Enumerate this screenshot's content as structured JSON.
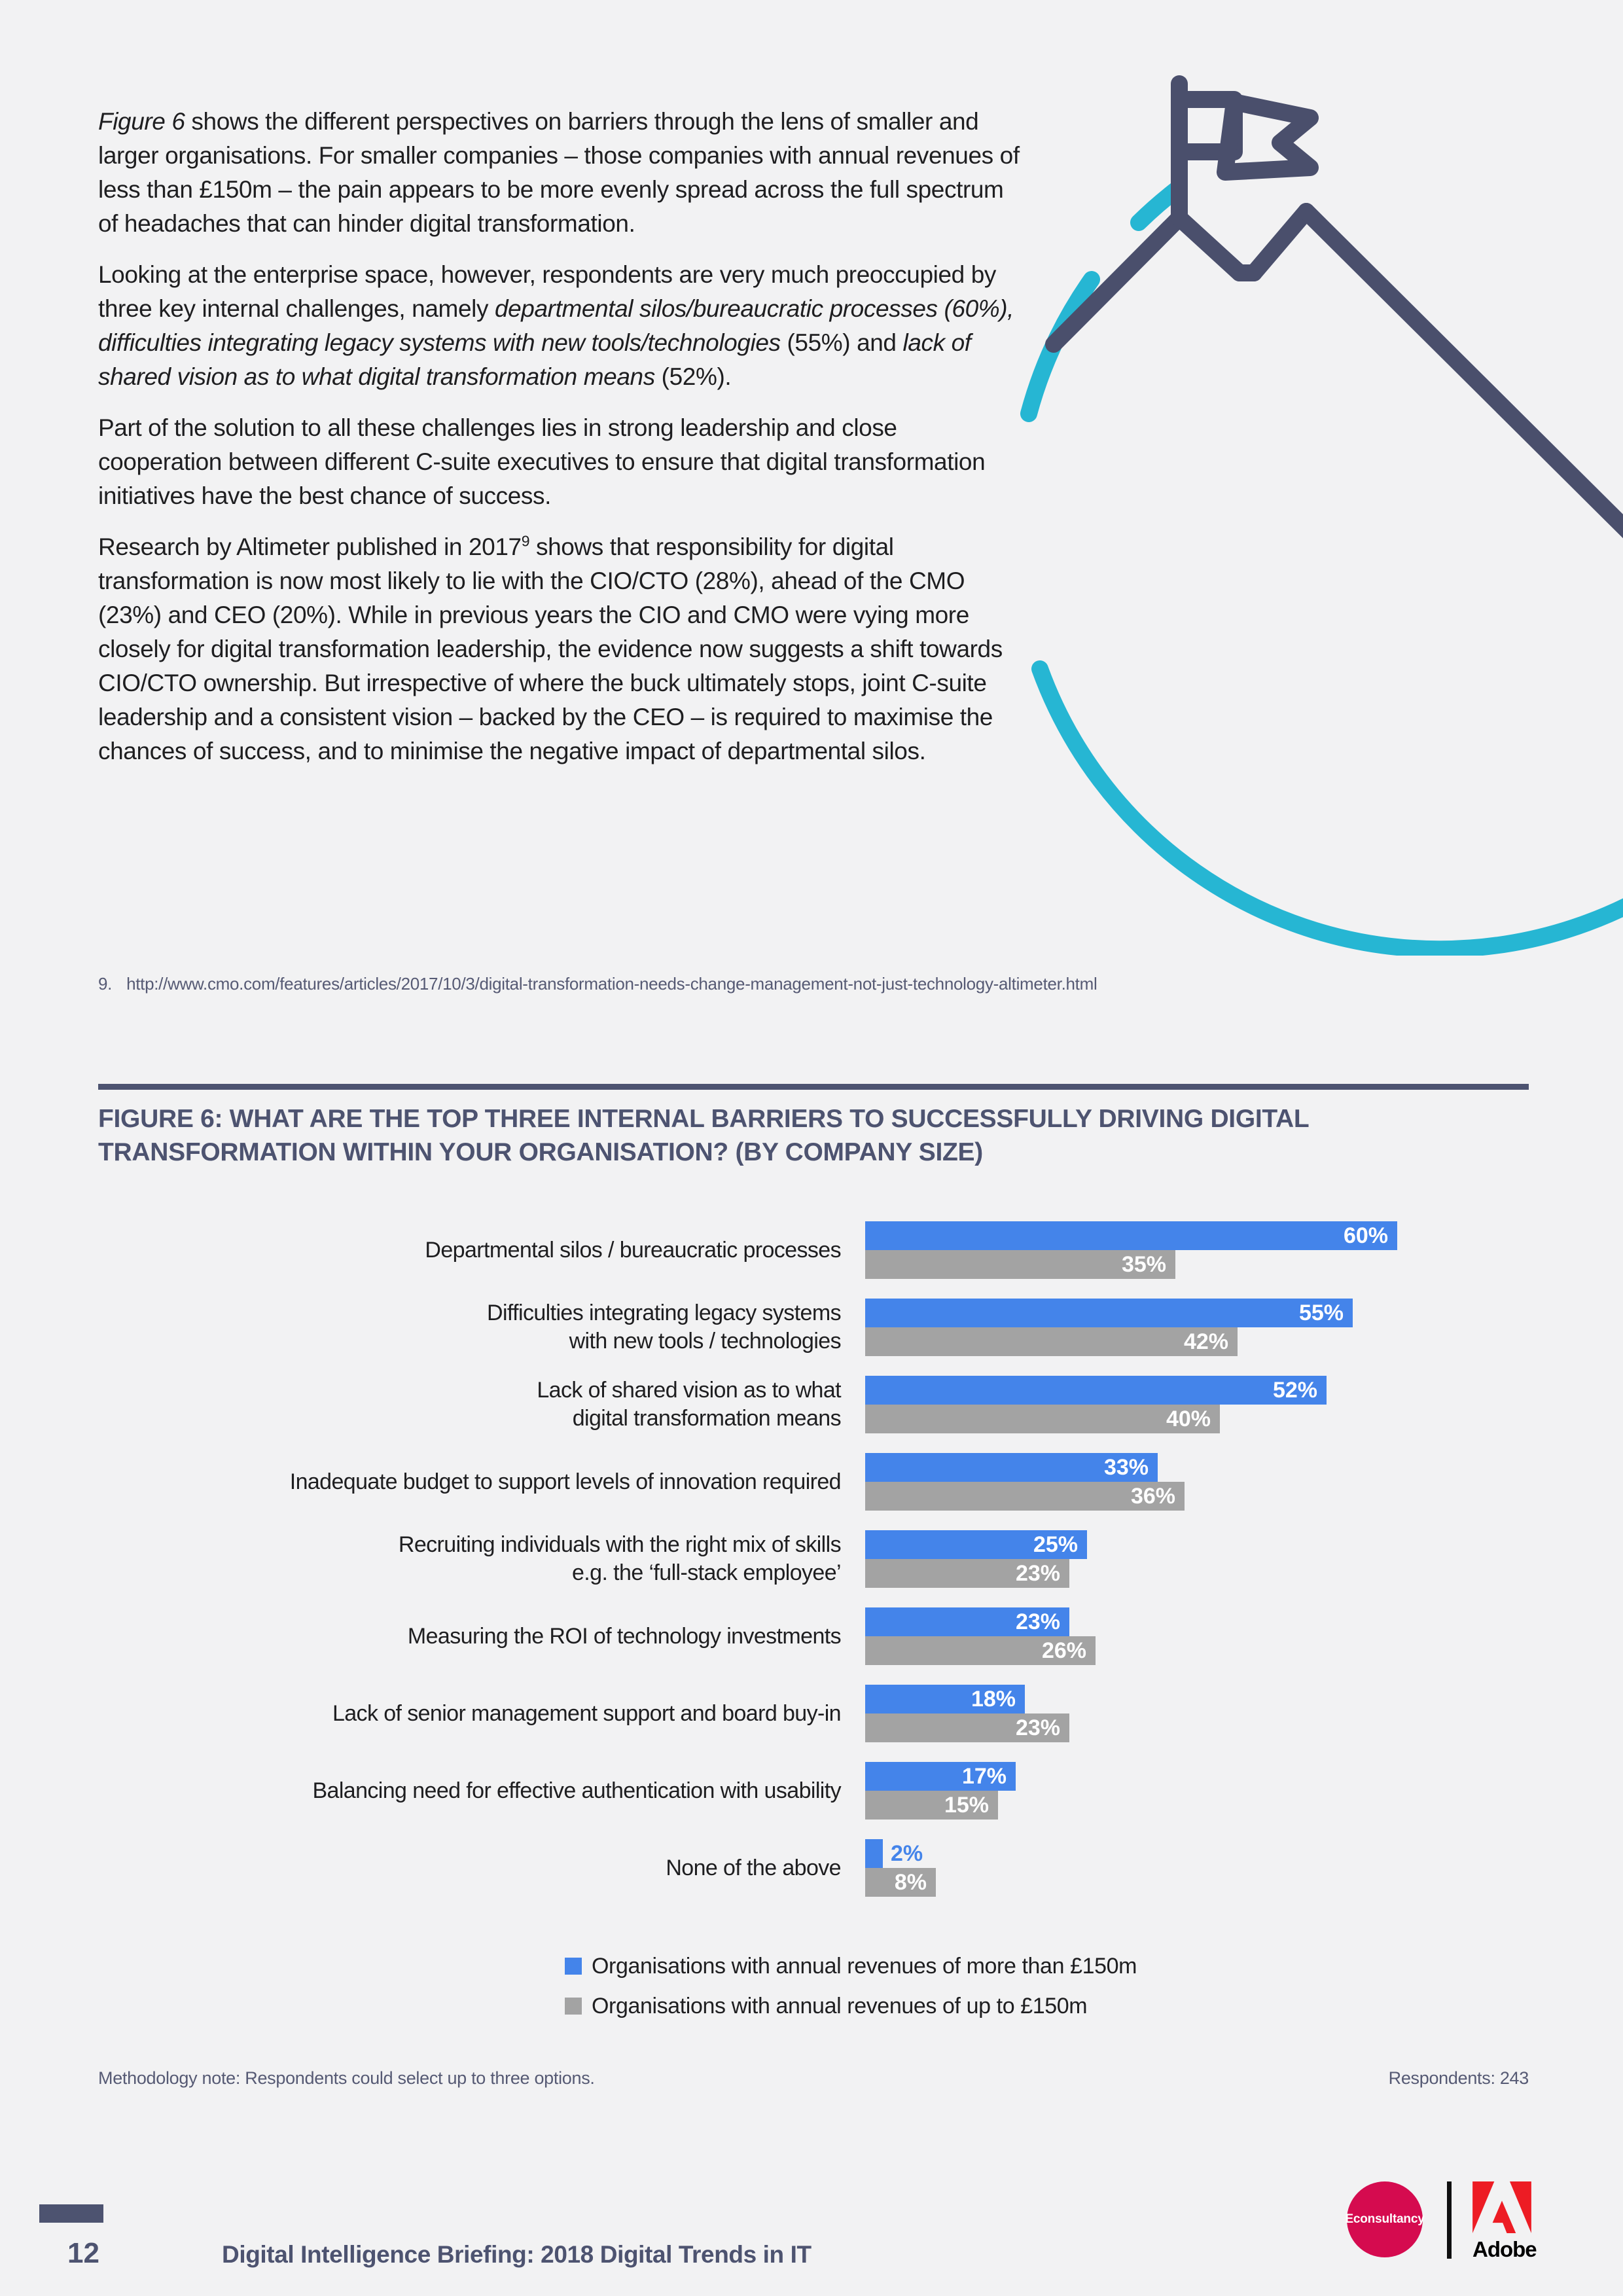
{
  "colors": {
    "page_bg": "#f2f2f3",
    "slate": "#4d5370",
    "illustration_navy": "#4a4f6c",
    "illustration_teal": "#26b6d3",
    "bar_blue": "#4484ea",
    "bar_gray": "#a3a3a3",
    "econsultancy_red": "#d50b4f",
    "adobe_red": "#ed1c24",
    "body_text": "#1e1e20",
    "note_text": "#565a74"
  },
  "article": {
    "paragraphs": [
      [
        {
          "t": "Figure 6",
          "i": true
        },
        {
          "t": " shows the different perspectives on barriers through the lens of smaller and larger organisations. For smaller companies – those companies with annual revenues of less than £150m – the pain appears to be more evenly spread across the full spectrum of headaches that can hinder digital transformation."
        }
      ],
      [
        {
          "t": "Looking at the enterprise space, however, respondents are very much preoccupied by three key internal challenges, namely "
        },
        {
          "t": "departmental silos/bureaucratic processes (60%), difficulties integrating legacy systems with new tools/technologies",
          "i": true
        },
        {
          "t": " (55%) and "
        },
        {
          "t": "lack of shared vision as to what digital transformation means",
          "i": true
        },
        {
          "t": " (52%)."
        }
      ],
      [
        {
          "t": "Part of the solution to all these challenges lies in strong leadership and close cooperation between different C-suite executives to ensure that digital transformation initiatives have the best chance of success."
        }
      ],
      [
        {
          "t": "Research by Altimeter published in 2017"
        },
        {
          "t": "9",
          "sup": true
        },
        {
          "t": " shows that responsibility for digital transformation is now most likely to lie with the CIO/CTO (28%), ahead of the CMO (23%) and CEO (20%). While in previous years the CIO and CMO were vying more closely for digital transformation leadership, the evidence now suggests a shift towards CIO/CTO ownership. But irrespective of where the buck ultimately stops, joint C-suite leadership and a consistent vision – backed by the CEO – is required to maximise the chances of success, and to minimise the negative impact of departmental silos."
        }
      ]
    ],
    "footnote": {
      "number": "9.",
      "url": "http://www.cmo.com/features/articles/2017/10/3/digital-transformation-needs-change-management-not-just-technology-altimeter.html"
    }
  },
  "figure": {
    "title": "FIGURE 6: WHAT ARE THE TOP THREE INTERNAL BARRIERS TO SUCCESSFULLY DRIVING DIGITAL TRANSFORMATION WITHIN YOUR ORGANISATION? (BY COMPANY SIZE)"
  },
  "chart_data": {
    "type": "bar",
    "orientation": "horizontal",
    "value_suffix": "%",
    "xlim": [
      0,
      60
    ],
    "grid": false,
    "legend_position": "bottom",
    "categories": [
      [
        "Departmental silos / bureaucratic processes"
      ],
      [
        "Difficulties integrating legacy systems",
        "with new tools / technologies"
      ],
      [
        "Lack of shared vision as to what",
        "digital transformation means"
      ],
      [
        "Inadequate budget to support levels of innovation required"
      ],
      [
        "Recruiting individuals with the right mix of skills",
        "e.g. the ‘full-stack employee’"
      ],
      [
        "Measuring the ROI of technology investments"
      ],
      [
        "Lack of senior management support and board buy-in"
      ],
      [
        "Balancing need for effective authentication with usability"
      ],
      [
        "None of the above"
      ]
    ],
    "series": [
      {
        "name": "Organisations with annual revenues of more than £150m",
        "color": "#4484ea",
        "values": [
          60,
          55,
          52,
          33,
          25,
          23,
          18,
          17,
          2
        ]
      },
      {
        "name": "Organisations with annual revenues of up to £150m",
        "color": "#a3a3a3",
        "values": [
          35,
          42,
          40,
          36,
          23,
          26,
          23,
          15,
          8
        ]
      }
    ]
  },
  "notes": {
    "methodology": "Methodology note: Respondents could select up to three options.",
    "respondents": "Respondents: 243"
  },
  "footer": {
    "page_number": "12",
    "title": "Digital Intelligence Briefing: 2018 Digital Trends in IT",
    "econsultancy_label": "Econsultancy",
    "adobe_label": "Adobe"
  }
}
